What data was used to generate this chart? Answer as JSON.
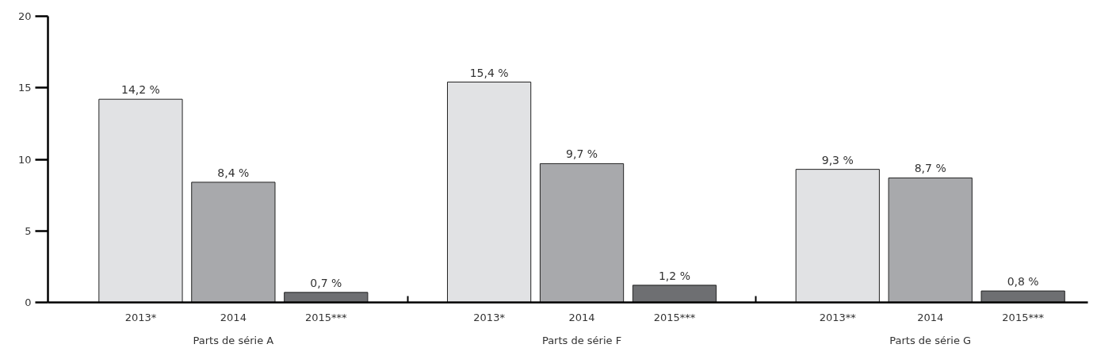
{
  "chart_data": {
    "type": "bar",
    "categories": [
      "2013*",
      "2014",
      "2015***",
      "2013*",
      "2014",
      "2015***",
      "2013**",
      "2014",
      "2015***"
    ],
    "values": [
      14.2,
      8.4,
      0.7,
      15.4,
      9.7,
      1.2,
      9.3,
      8.7,
      0.8
    ],
    "colors": [
      "#e1e2e4",
      "#a8a9ac",
      "#6e6f72",
      "#e1e2e4",
      "#a8a9ac",
      "#6e6f72",
      "#e1e2e4",
      "#a8a9ac",
      "#6e6f72"
    ],
    "value_labels": [
      "14,2 %",
      "8,4 %",
      "0,7 %",
      "15,4 %",
      "9,7 %",
      "1,2 %",
      "9,3 %",
      "8,7 %",
      "0,8 %"
    ],
    "annotations": [
      "Parts de série A",
      "Parts de série F",
      "Parts de série G"
    ],
    "ylim": [
      0,
      20
    ],
    "yticks": [
      0,
      5,
      10,
      15,
      20
    ]
  }
}
